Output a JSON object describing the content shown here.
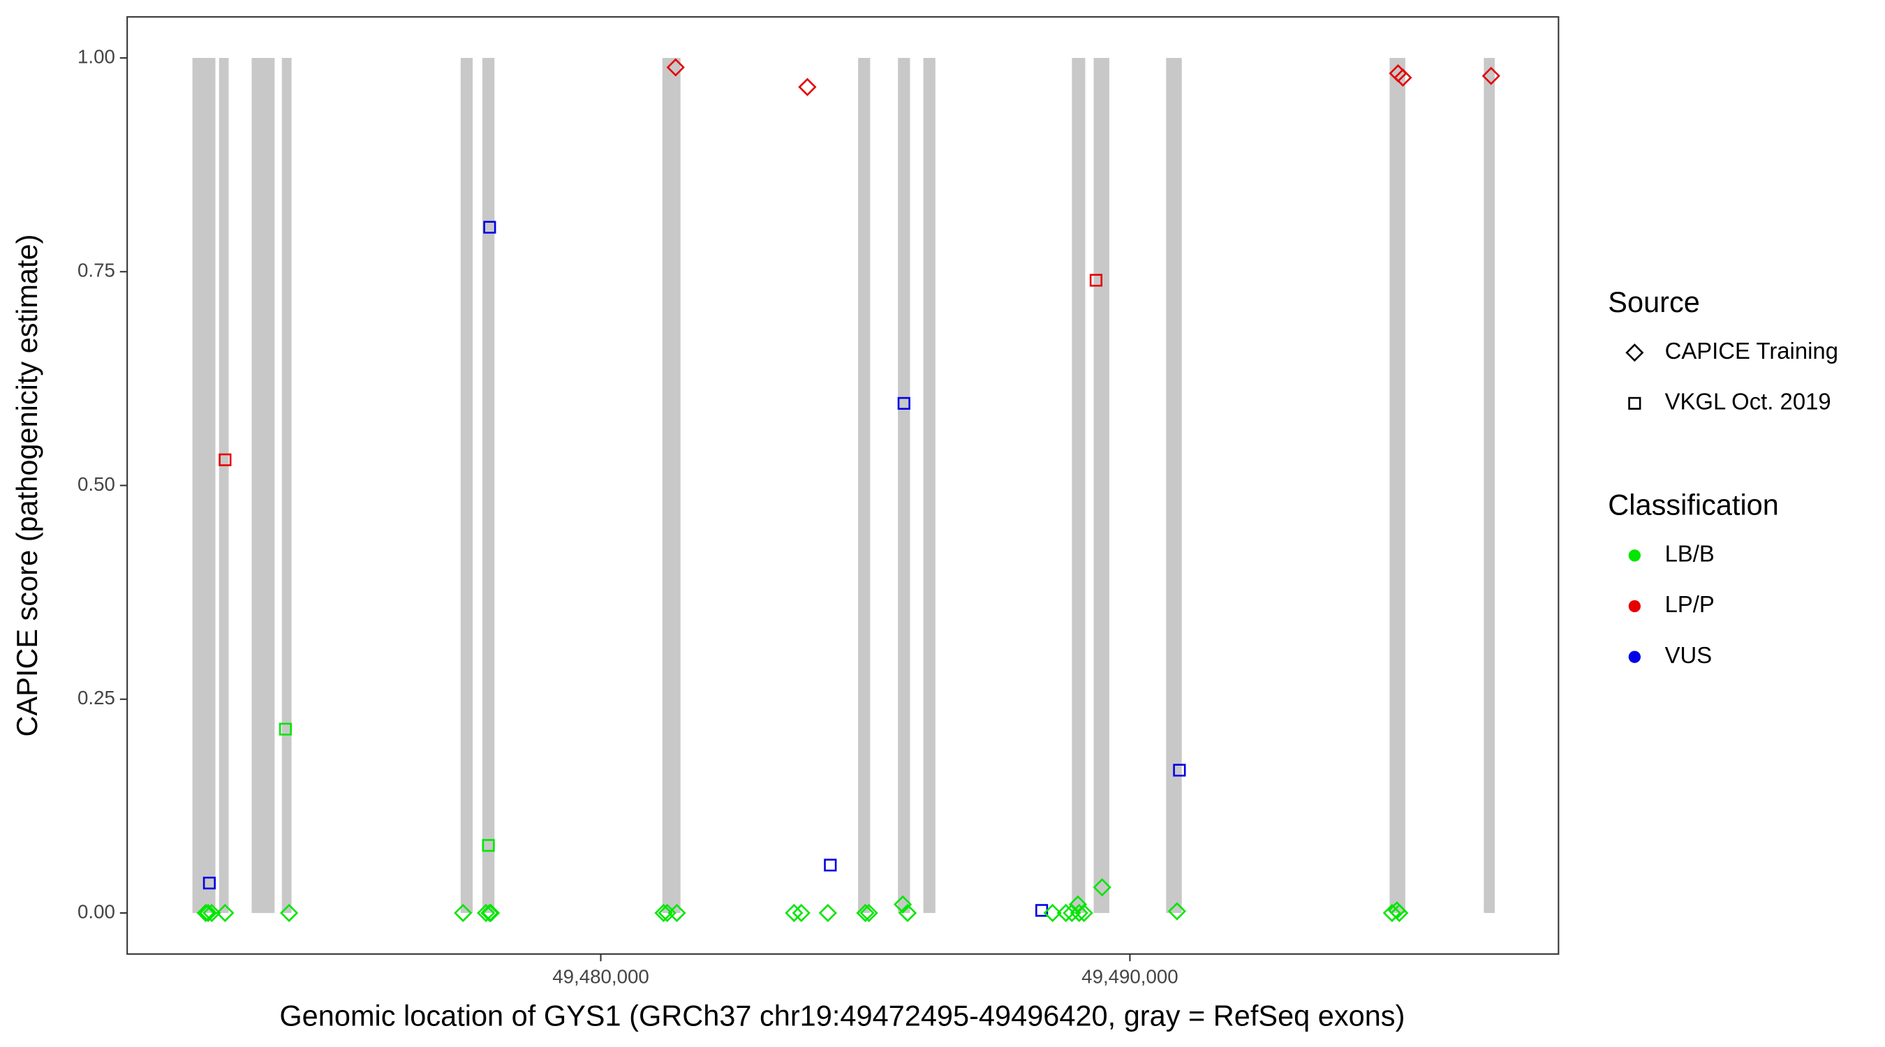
{
  "chart_data": {
    "type": "scatter",
    "x_label": "Genomic location of GYS1 (GRCh37 chr19:49472495-49496420, gray = RefSeq exons)",
    "y_label": "CAPICE score (pathogenicity estimate)",
    "xlim": [
      49471050,
      49498100
    ],
    "ylim": [
      -0.048,
      1.048
    ],
    "xticks": [
      {
        "value": 49480000,
        "label": "49,480,000"
      },
      {
        "value": 49490000,
        "label": "49,490,000"
      }
    ],
    "yticks": [
      {
        "value": 0,
        "label": "0.00"
      },
      {
        "value": 0.25,
        "label": "0.25"
      },
      {
        "value": 0.5,
        "label": "0.50"
      },
      {
        "value": 0.75,
        "label": "0.75"
      },
      {
        "value": 1,
        "label": "1.00"
      }
    ],
    "exons": {
      "color": "#c8c8c8",
      "y": [
        0,
        1
      ],
      "starts": [
        49472283,
        49472786,
        49473402,
        49473973,
        49477352,
        49477763,
        49481164,
        49484863,
        49485616,
        49486096,
        49488904,
        49489315,
        49490684,
        49494908,
        49496689
      ],
      "ends": [
        49472717,
        49472968,
        49473836,
        49474156,
        49477580,
        49477991,
        49481507,
        49485091,
        49485844,
        49486324,
        49489155,
        49489611,
        49490981,
        49495205,
        49496894
      ]
    },
    "legends": [
      {
        "title": "Source",
        "entries": [
          {
            "label": "CAPICE Training",
            "shape": "diamond"
          },
          {
            "label": "VKGL Oct. 2019",
            "shape": "square"
          }
        ]
      },
      {
        "title": "Classification",
        "entries": [
          {
            "label": "LB/B",
            "color": "#00e600"
          },
          {
            "label": "LP/P",
            "color": "#e60000"
          },
          {
            "label": "VUS",
            "color": "#0000e6"
          }
        ]
      }
    ],
    "series": [
      {
        "source": "VKGL Oct. 2019",
        "classification": "VUS",
        "x": [
          49472603,
          49477900,
          49485730,
          49484338,
          49488333,
          49490936
        ],
        "y": [
          0.035,
          0.802,
          0.596,
          0.056,
          0.003,
          0.167
        ]
      },
      {
        "source": "VKGL Oct. 2019",
        "classification": "LP/P",
        "x": [
          49472900,
          49489360
        ],
        "y": [
          0.53,
          0.74
        ]
      },
      {
        "source": "VKGL Oct. 2019",
        "classification": "LB/B",
        "x": [
          49474041,
          49477877
        ],
        "y": [
          0.215,
          0.079
        ]
      },
      {
        "source": "CAPICE Training",
        "classification": "LP/P",
        "x": [
          49481415,
          49483904,
          49495068,
          49495159,
          49496826
        ],
        "y": [
          0.989,
          0.966,
          0.982,
          0.977,
          0.979
        ]
      },
      {
        "source": "CAPICE Training",
        "classification": "LB/B",
        "x": [
          49472535,
          49472580,
          49472649,
          49472900,
          49474110,
          49477397,
          49477831,
          49477900,
          49477922,
          49481187,
          49481256,
          49481438,
          49483653,
          49483790,
          49484292,
          49485000,
          49485068,
          49485708,
          49485799,
          49488538,
          49488790,
          49488904,
          49489018,
          49489041,
          49489132,
          49489475,
          49490890,
          49494954,
          49495045,
          49495091
        ],
        "y": [
          0,
          0,
          0,
          0,
          0,
          0,
          0,
          0,
          0,
          0,
          0,
          0,
          0,
          0,
          0,
          0,
          0,
          0.01,
          0,
          0,
          0,
          0,
          0.01,
          0,
          0,
          0.03,
          0.002,
          0,
          0.003,
          0
        ]
      }
    ]
  }
}
